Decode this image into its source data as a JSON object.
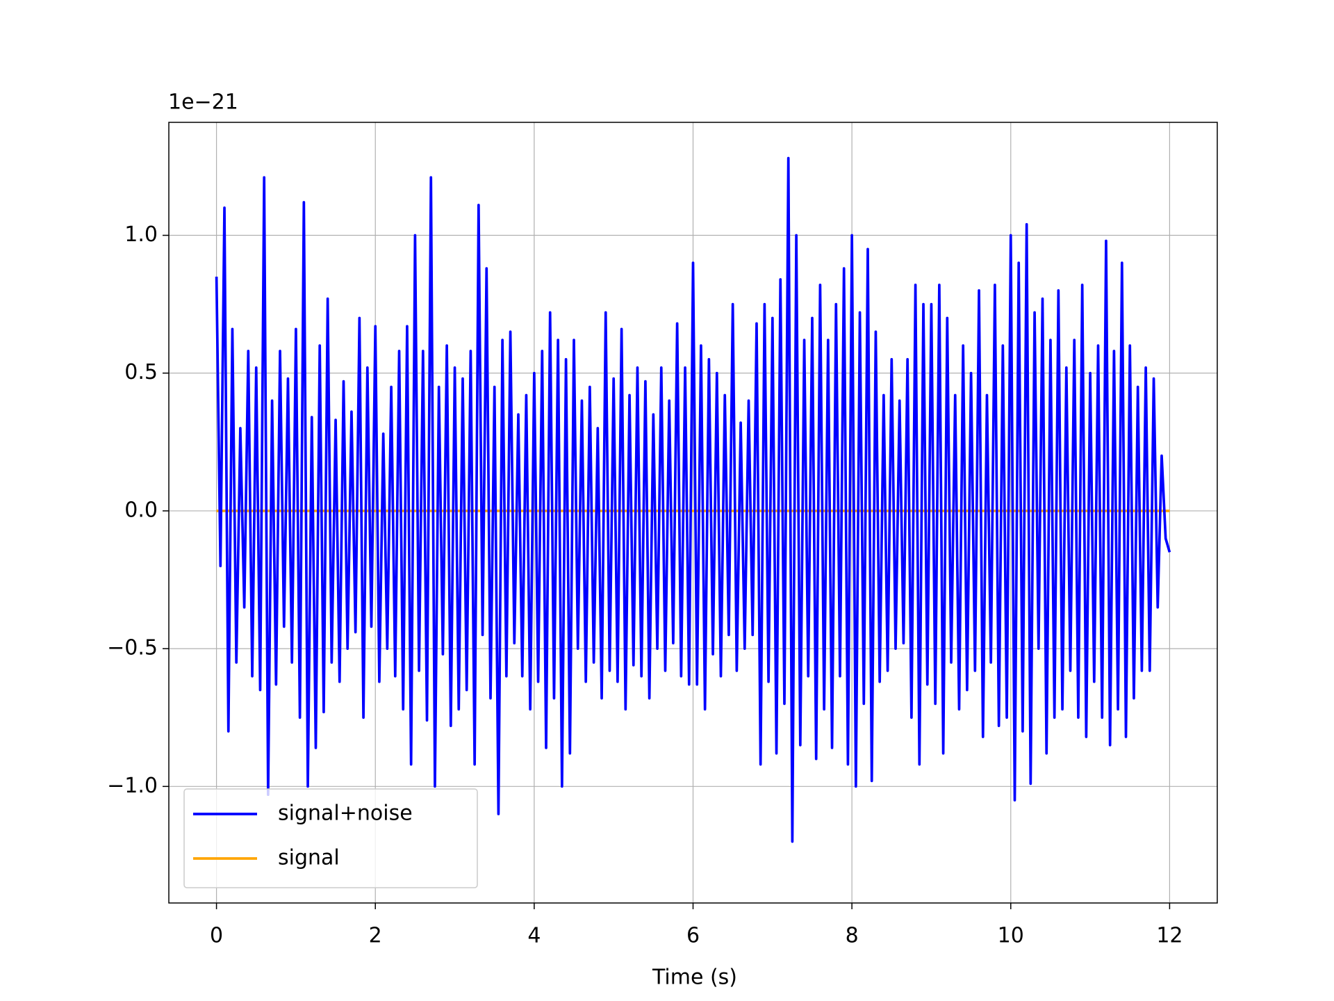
{
  "chart_data": {
    "type": "line",
    "xlabel": "Time (s)",
    "y_offset_label": "1e−21",
    "x": [
      0,
      0.05,
      0.1,
      0.15,
      0.2,
      0.25,
      0.3,
      0.35,
      0.4,
      0.45,
      0.5,
      0.55,
      0.6,
      0.65,
      0.7,
      0.75,
      0.8,
      0.85,
      0.9,
      0.95,
      1,
      1.05,
      1.1,
      1.15,
      1.2,
      1.25,
      1.3,
      1.35,
      1.4,
      1.45,
      1.5,
      1.55,
      1.6,
      1.65,
      1.7,
      1.75,
      1.8,
      1.85,
      1.9,
      1.95,
      2,
      2.05,
      2.1,
      2.15,
      2.2,
      2.25,
      2.3,
      2.35,
      2.4,
      2.45,
      2.5,
      2.55,
      2.6,
      2.65,
      2.7,
      2.75,
      2.8,
      2.85,
      2.9,
      2.95,
      3,
      3.05,
      3.1,
      3.15,
      3.2,
      3.25,
      3.3,
      3.35,
      3.4,
      3.45,
      3.5,
      3.55,
      3.6,
      3.65,
      3.7,
      3.75,
      3.8,
      3.85,
      3.9,
      3.95,
      4,
      4.05,
      4.1,
      4.15,
      4.2,
      4.25,
      4.3,
      4.35,
      4.4,
      4.45,
      4.5,
      4.55,
      4.6,
      4.65,
      4.7,
      4.75,
      4.8,
      4.85,
      4.9,
      4.95,
      5,
      5.05,
      5.1,
      5.15,
      5.2,
      5.25,
      5.3,
      5.35,
      5.4,
      5.45,
      5.5,
      5.55,
      5.6,
      5.65,
      5.7,
      5.75,
      5.8,
      5.85,
      5.9,
      5.95,
      6,
      6.05,
      6.1,
      6.15,
      6.2,
      6.25,
      6.3,
      6.35,
      6.4,
      6.45,
      6.5,
      6.55,
      6.6,
      6.65,
      6.7,
      6.75,
      6.8,
      6.85,
      6.9,
      6.95,
      7,
      7.05,
      7.1,
      7.15,
      7.2,
      7.25,
      7.3,
      7.35,
      7.4,
      7.45,
      7.5,
      7.55,
      7.6,
      7.65,
      7.7,
      7.75,
      7.8,
      7.85,
      7.9,
      7.95,
      8,
      8.05,
      8.1,
      8.15,
      8.2,
      8.25,
      8.3,
      8.35,
      8.4,
      8.45,
      8.5,
      8.55,
      8.6,
      8.65,
      8.7,
      8.75,
      8.8,
      8.85,
      8.9,
      8.95,
      9,
      9.05,
      9.1,
      9.15,
      9.2,
      9.25,
      9.3,
      9.35,
      9.4,
      9.45,
      9.5,
      9.55,
      9.6,
      9.65,
      9.7,
      9.75,
      9.8,
      9.85,
      9.9,
      9.95,
      10,
      10.05,
      10.1,
      10.15,
      10.2,
      10.25,
      10.3,
      10.35,
      10.4,
      10.45,
      10.5,
      10.55,
      10.6,
      10.65,
      10.7,
      10.75,
      10.8,
      10.85,
      10.9,
      10.95,
      11,
      11.05,
      11.1,
      11.15,
      11.2,
      11.25,
      11.3,
      11.35,
      11.4,
      11.45,
      11.5,
      11.55,
      11.6,
      11.65,
      11.7,
      11.75,
      11.8,
      11.85,
      11.9,
      11.95,
      12
    ],
    "series": [
      {
        "name": "signal+noise",
        "color": "#0000ff",
        "values": [
          0.85,
          -0.2,
          1.1,
          -0.8,
          0.66,
          -0.55,
          0.3,
          -0.35,
          0.58,
          -0.6,
          0.52,
          -0.65,
          1.21,
          -1.03,
          0.4,
          -0.63,
          0.58,
          -0.42,
          0.48,
          -0.55,
          0.66,
          -0.75,
          1.12,
          -1.0,
          0.34,
          -0.86,
          0.6,
          -0.73,
          0.77,
          -0.55,
          0.33,
          -0.62,
          0.47,
          -0.5,
          0.36,
          -0.44,
          0.7,
          -0.75,
          0.52,
          -0.42,
          0.67,
          -0.62,
          0.28,
          -0.5,
          0.45,
          -0.6,
          0.58,
          -0.72,
          0.67,
          -0.92,
          1.0,
          -0.58,
          0.58,
          -0.76,
          1.21,
          -1.0,
          0.45,
          -0.52,
          0.6,
          -0.78,
          0.52,
          -0.72,
          0.48,
          -0.65,
          0.58,
          -0.92,
          1.11,
          -0.45,
          0.88,
          -0.68,
          0.45,
          -1.1,
          0.62,
          -0.6,
          0.65,
          -0.48,
          0.35,
          -0.6,
          0.42,
          -0.72,
          0.5,
          -0.62,
          0.58,
          -0.86,
          0.72,
          -0.68,
          0.62,
          -1.0,
          0.55,
          -0.88,
          0.62,
          -0.5,
          0.4,
          -0.62,
          0.45,
          -0.55,
          0.3,
          -0.68,
          0.72,
          -0.58,
          0.48,
          -0.62,
          0.66,
          -0.72,
          0.42,
          -0.56,
          0.52,
          -0.6,
          0.47,
          -0.68,
          0.35,
          -0.5,
          0.52,
          -0.58,
          0.4,
          -0.48,
          0.68,
          -0.6,
          0.52,
          -0.63,
          0.9,
          -0.63,
          0.6,
          -0.72,
          0.55,
          -0.52,
          0.5,
          -0.6,
          0.42,
          -0.45,
          0.75,
          -0.58,
          0.32,
          -0.5,
          0.4,
          -0.45,
          0.68,
          -0.92,
          0.75,
          -0.62,
          0.7,
          -0.88,
          0.84,
          -0.7,
          1.28,
          -1.2,
          1.0,
          -0.85,
          0.62,
          -0.6,
          0.7,
          -0.9,
          0.82,
          -0.72,
          0.62,
          -0.86,
          0.75,
          -0.6,
          0.88,
          -0.92,
          1.0,
          -1.0,
          0.72,
          -0.7,
          0.95,
          -0.98,
          0.65,
          -0.62,
          0.42,
          -0.58,
          0.55,
          -0.5,
          0.4,
          -0.48,
          0.55,
          -0.75,
          0.82,
          -0.92,
          0.75,
          -0.63,
          0.75,
          -0.7,
          0.82,
          -0.88,
          0.7,
          -0.55,
          0.42,
          -0.72,
          0.6,
          -0.65,
          0.5,
          -0.58,
          0.8,
          -0.82,
          0.42,
          -0.55,
          0.82,
          -0.78,
          0.6,
          -0.75,
          1.0,
          -1.05,
          0.9,
          -0.8,
          1.04,
          -0.99,
          0.72,
          -0.5,
          0.77,
          -0.88,
          0.62,
          -0.75,
          0.8,
          -0.72,
          0.52,
          -0.58,
          0.62,
          -0.75,
          0.82,
          -0.82,
          0.5,
          -0.62,
          0.6,
          -0.75,
          0.98,
          -0.85,
          0.58,
          -0.72,
          0.9,
          -0.82,
          0.6,
          -0.68,
          0.45,
          -0.58,
          0.52,
          -0.58,
          0.48,
          -0.35,
          0.2,
          -0.1,
          -0.15
        ]
      },
      {
        "name": "signal",
        "color": "#ffa500",
        "values": [
          0,
          0,
          0,
          0,
          0,
          0,
          0,
          0,
          0,
          0,
          0,
          0,
          0,
          0,
          0,
          0,
          0,
          0,
          0,
          0,
          0,
          0,
          0,
          0,
          0,
          0,
          0,
          0,
          0,
          0,
          0,
          0,
          0,
          0,
          0,
          0,
          0,
          0,
          0,
          0,
          0,
          0,
          0,
          0,
          0,
          0,
          0,
          0,
          0,
          0,
          0,
          0,
          0,
          0,
          0,
          0,
          0,
          0,
          0,
          0,
          0,
          0,
          0,
          0,
          0,
          0,
          0,
          0,
          0,
          0,
          0,
          0,
          0,
          0,
          0,
          0,
          0,
          0,
          0,
          0,
          0,
          0,
          0,
          0,
          0,
          0,
          0,
          0,
          0,
          0,
          0,
          0,
          0,
          0,
          0,
          0,
          0,
          0,
          0,
          0,
          0,
          0,
          0,
          0,
          0,
          0,
          0,
          0,
          0,
          0,
          0,
          0,
          0,
          0,
          0,
          0,
          0,
          0,
          0,
          0,
          0,
          0,
          0,
          0,
          0,
          0,
          0,
          0,
          0,
          0,
          0,
          0,
          0,
          0,
          0,
          0,
          0,
          0,
          0,
          0,
          0,
          0,
          0,
          0,
          0,
          0,
          0,
          0,
          0,
          0,
          0,
          0,
          0,
          0,
          0,
          0,
          0,
          0,
          0,
          0,
          0,
          0,
          0,
          0,
          0,
          0,
          0,
          0,
          0,
          0,
          0,
          0,
          0,
          0,
          0,
          0,
          0,
          0,
          0,
          0,
          0,
          0,
          0,
          0,
          0,
          0,
          0,
          0,
          0,
          0,
          0,
          0,
          0,
          0,
          0,
          0,
          0,
          0,
          0,
          0,
          0,
          0,
          0,
          0,
          0,
          0,
          0,
          0,
          0,
          0,
          0,
          0,
          0,
          0,
          0,
          0,
          0,
          0,
          0,
          0,
          0,
          0,
          0,
          0,
          0,
          0,
          0,
          0,
          0,
          0,
          0,
          0,
          0,
          0,
          0,
          0,
          0,
          0,
          0,
          0,
          0
        ]
      }
    ],
    "xlim": [
      -0.6,
      12.6
    ],
    "ylim": [
      -1.423,
      1.41
    ],
    "xticks": [
      0,
      2,
      4,
      6,
      8,
      10,
      12
    ],
    "yticks": [
      {
        "value": -1.0,
        "label": "−1.0"
      },
      {
        "value": -0.5,
        "label": "−0.5"
      },
      {
        "value": 0,
        "label": "0.0"
      },
      {
        "value": 0.5,
        "label": "0.5"
      },
      {
        "value": 1.0,
        "label": "1.0"
      }
    ],
    "grid": true,
    "legend": "lower left"
  }
}
